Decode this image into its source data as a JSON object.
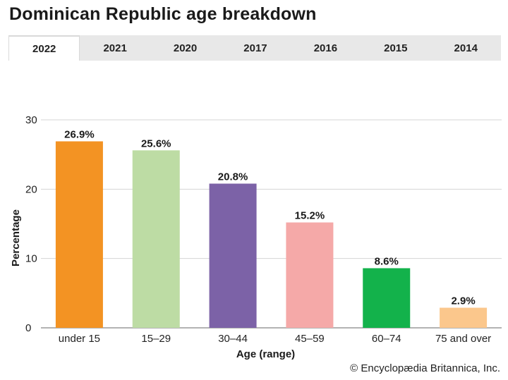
{
  "title": "Dominican Republic age breakdown",
  "tabs": [
    "2022",
    "2021",
    "2020",
    "2017",
    "2016",
    "2015",
    "2014"
  ],
  "active_tab": "2022",
  "credit": "© Encyclopædia Britannica, Inc.",
  "chart_data": {
    "type": "bar",
    "categories": [
      "under 15",
      "15–29",
      "30–44",
      "45–59",
      "60–74",
      "75 and over"
    ],
    "values": [
      26.9,
      25.6,
      20.8,
      15.2,
      8.6,
      2.9
    ],
    "data_labels": [
      "26.9%",
      "25.6%",
      "20.8%",
      "15.2%",
      "8.6%",
      "2.9%"
    ],
    "colors": [
      "#f39323",
      "#bddca4",
      "#7c62a7",
      "#f5a9a8",
      "#13b24b",
      "#fbc78c"
    ],
    "xlabel": "Age (range)",
    "ylabel": "Percentage",
    "ylim": [
      0,
      30
    ],
    "yticks": [
      0,
      10,
      20,
      30
    ],
    "grid": true,
    "legend": "none"
  }
}
